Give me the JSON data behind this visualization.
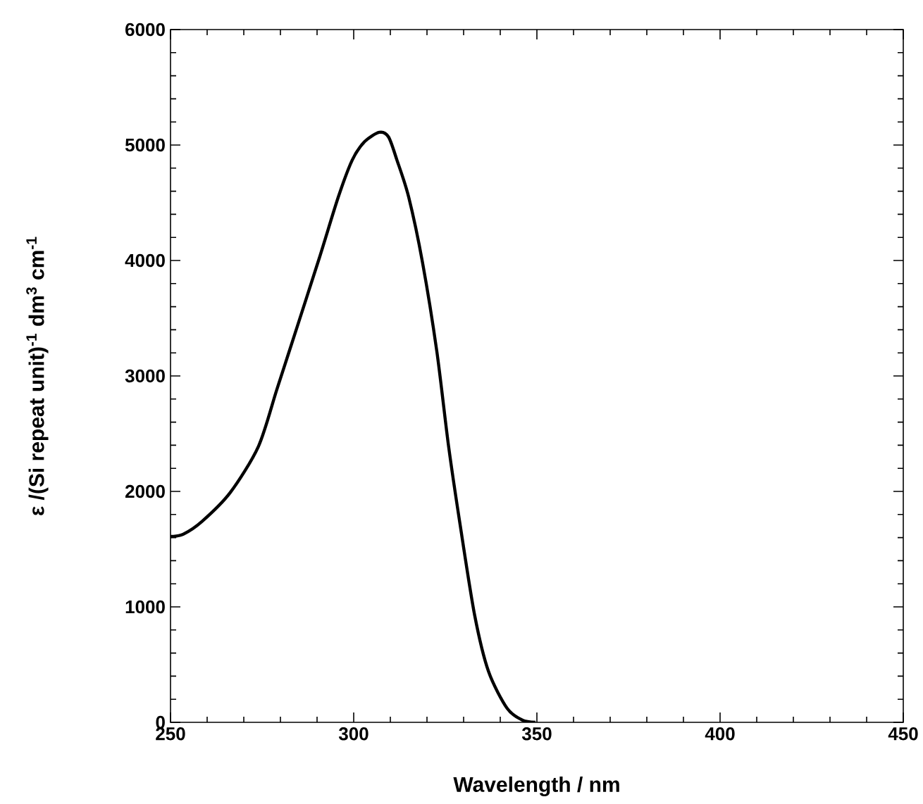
{
  "chart_data": {
    "type": "line",
    "xlabel": "Wavelength / nm",
    "ylabel": "ε /(Si repeat unit)$^{-1}$ dm$^{3}$ cm$^{-1}$",
    "xlim": [
      250,
      450
    ],
    "ylim": [
      0,
      6000
    ],
    "xticks": [
      250,
      300,
      350,
      400,
      450
    ],
    "yticks": [
      0,
      1000,
      2000,
      3000,
      4000,
      5000,
      6000
    ],
    "marker": "none",
    "line_style": "solid",
    "series": [
      {
        "color": "#000000",
        "x": [
          250,
          253.5,
          258.6,
          266.3,
          274,
          279,
          284,
          290.6,
          295.8,
          299.6,
          303,
          307,
          309.5,
          311.8,
          315,
          318.8,
          322.7,
          325.9,
          329.1,
          333,
          336.8,
          341.9,
          346,
          349.6
        ],
        "values": [
          1610,
          1630,
          1740,
          1990,
          2390,
          2880,
          3370,
          4020,
          4550,
          4870,
          5030,
          5110,
          5070,
          4870,
          4550,
          3980,
          3210,
          2390,
          1700,
          930,
          440,
          120,
          20,
          0
        ]
      }
    ]
  }
}
